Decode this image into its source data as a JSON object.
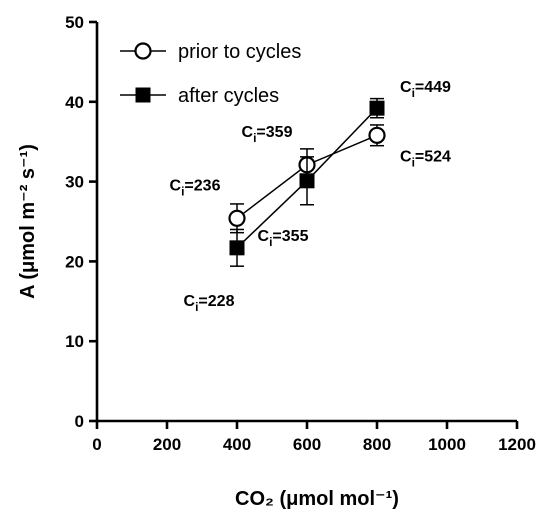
{
  "chart_data": {
    "type": "scatter",
    "xlabel": "CO₂ (μmol mol⁻¹)",
    "ylabel": "A (μmol m⁻² s⁻¹)",
    "xlim": [
      0,
      1200
    ],
    "ylim": [
      0,
      50
    ],
    "xticks": [
      0,
      200,
      400,
      600,
      800,
      1000,
      1200
    ],
    "yticks": [
      0,
      10,
      20,
      30,
      40,
      50
    ],
    "grid": false,
    "legend_position": "top-left",
    "series": [
      {
        "name": "prior to cycles",
        "marker": "open-circle",
        "x": [
          400,
          600,
          800
        ],
        "y": [
          25.4,
          32.1,
          35.8
        ],
        "err": [
          1.8,
          2.0,
          1.3
        ]
      },
      {
        "name": "after cycles",
        "marker": "filled-square",
        "x": [
          400,
          600,
          800
        ],
        "y": [
          21.7,
          30.1,
          39.2
        ],
        "err": [
          2.3,
          3.0,
          1.2
        ]
      }
    ],
    "annotations": [
      {
        "label": "C",
        "sub": "i",
        "value": "=236",
        "x": 400,
        "y": 25.4
      },
      {
        "label": "C",
        "sub": "i",
        "value": "=228",
        "x": 400,
        "y": 21.7
      },
      {
        "label": "C",
        "sub": "i",
        "value": "=359",
        "x": 600,
        "y": 32.1
      },
      {
        "label": "C",
        "sub": "i",
        "value": "=355",
        "x": 600,
        "y": 30.1
      },
      {
        "label": "C",
        "sub": "i",
        "value": "=449",
        "x": 800,
        "y": 39.2
      },
      {
        "label": "C",
        "sub": "i",
        "value": "=524",
        "x": 800,
        "y": 35.8
      }
    ]
  }
}
